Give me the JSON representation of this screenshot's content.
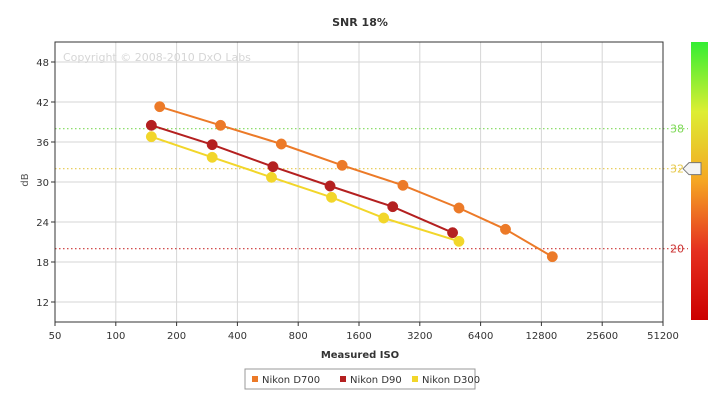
{
  "chart_data": {
    "type": "line",
    "title": "SNR 18%",
    "xlabel": "Measured ISO",
    "ylabel": "dB",
    "xscale": "log2",
    "xlim": [
      50,
      51200
    ],
    "ylim": [
      9,
      51
    ],
    "xticks": [
      50,
      100,
      200,
      400,
      800,
      1600,
      3200,
      6400,
      12800,
      25600,
      51200
    ],
    "yticks": [
      12,
      18,
      24,
      30,
      36,
      42,
      48
    ],
    "grid": true,
    "copyright": "Copyright © 2008-2010 DxO Labs",
    "legend_position": "bottom-center",
    "series": [
      {
        "name": "Nikon D700",
        "color": "#ec7a28",
        "x": [
          165,
          330,
          660,
          1320,
          2640,
          5000,
          8500,
          14500
        ],
        "y": [
          41.3,
          38.5,
          35.7,
          32.5,
          29.5,
          26.1,
          22.9,
          18.8
        ]
      },
      {
        "name": "Nikon D90",
        "color": "#b42020",
        "x": [
          150,
          300,
          600,
          1150,
          2350,
          4650
        ],
        "y": [
          38.5,
          35.6,
          32.3,
          29.4,
          26.3,
          22.4
        ]
      },
      {
        "name": "Nikon D300",
        "color": "#f2d62a",
        "x": [
          150,
          300,
          590,
          1170,
          2120,
          5000
        ],
        "y": [
          36.8,
          33.7,
          30.7,
          27.7,
          24.6,
          21.1
        ]
      }
    ],
    "reference_lines": [
      {
        "value": 38,
        "label": "38",
        "color": "#7ed957"
      },
      {
        "value": 32,
        "label": "32",
        "color": "#e6c84a"
      },
      {
        "value": 20,
        "label": "20",
        "color": "#cc3333"
      }
    ],
    "scale_bar": {
      "gradient": [
        "#33ee33",
        "#ddee33",
        "#f5a623",
        "#e53020",
        "#cc0000"
      ],
      "marker_value": 32
    }
  }
}
